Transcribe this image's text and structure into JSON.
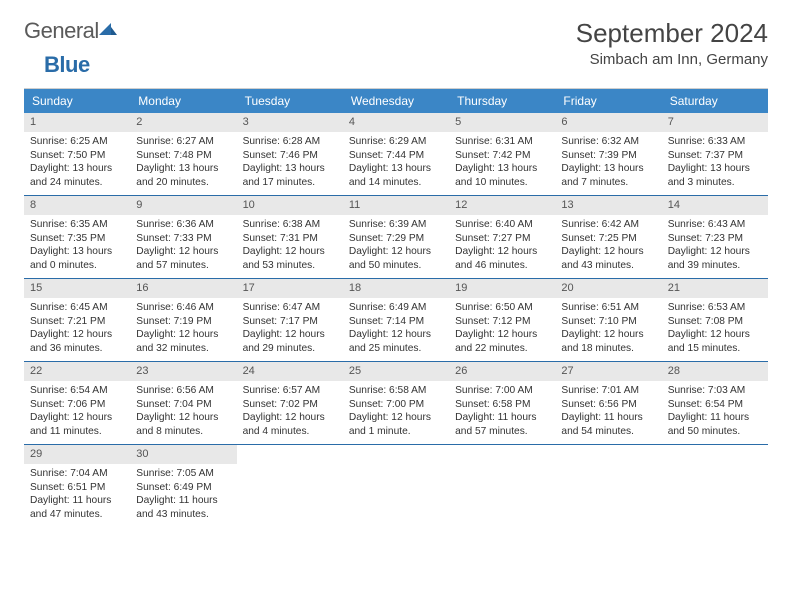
{
  "logo": {
    "word1": "General",
    "word2": "Blue"
  },
  "header": {
    "month_title": "September 2024",
    "location": "Simbach am Inn, Germany"
  },
  "colors": {
    "header_bar": "#3b86c6",
    "daynum_bg": "#e8e8e8",
    "week_divider": "#2a6ca8",
    "logo_blue": "#2a6ca8",
    "text": "#333333"
  },
  "weekdays": [
    "Sunday",
    "Monday",
    "Tuesday",
    "Wednesday",
    "Thursday",
    "Friday",
    "Saturday"
  ],
  "weeks": [
    [
      {
        "n": "1",
        "sunrise": "6:25 AM",
        "sunset": "7:50 PM",
        "dl_h": "13",
        "dl_m": "24"
      },
      {
        "n": "2",
        "sunrise": "6:27 AM",
        "sunset": "7:48 PM",
        "dl_h": "13",
        "dl_m": "20"
      },
      {
        "n": "3",
        "sunrise": "6:28 AM",
        "sunset": "7:46 PM",
        "dl_h": "13",
        "dl_m": "17"
      },
      {
        "n": "4",
        "sunrise": "6:29 AM",
        "sunset": "7:44 PM",
        "dl_h": "13",
        "dl_m": "14"
      },
      {
        "n": "5",
        "sunrise": "6:31 AM",
        "sunset": "7:42 PM",
        "dl_h": "13",
        "dl_m": "10"
      },
      {
        "n": "6",
        "sunrise": "6:32 AM",
        "sunset": "7:39 PM",
        "dl_h": "13",
        "dl_m": "7"
      },
      {
        "n": "7",
        "sunrise": "6:33 AM",
        "sunset": "7:37 PM",
        "dl_h": "13",
        "dl_m": "3"
      }
    ],
    [
      {
        "n": "8",
        "sunrise": "6:35 AM",
        "sunset": "7:35 PM",
        "dl_h": "13",
        "dl_m": "0"
      },
      {
        "n": "9",
        "sunrise": "6:36 AM",
        "sunset": "7:33 PM",
        "dl_h": "12",
        "dl_m": "57"
      },
      {
        "n": "10",
        "sunrise": "6:38 AM",
        "sunset": "7:31 PM",
        "dl_h": "12",
        "dl_m": "53"
      },
      {
        "n": "11",
        "sunrise": "6:39 AM",
        "sunset": "7:29 PM",
        "dl_h": "12",
        "dl_m": "50"
      },
      {
        "n": "12",
        "sunrise": "6:40 AM",
        "sunset": "7:27 PM",
        "dl_h": "12",
        "dl_m": "46"
      },
      {
        "n": "13",
        "sunrise": "6:42 AM",
        "sunset": "7:25 PM",
        "dl_h": "12",
        "dl_m": "43"
      },
      {
        "n": "14",
        "sunrise": "6:43 AM",
        "sunset": "7:23 PM",
        "dl_h": "12",
        "dl_m": "39"
      }
    ],
    [
      {
        "n": "15",
        "sunrise": "6:45 AM",
        "sunset": "7:21 PM",
        "dl_h": "12",
        "dl_m": "36"
      },
      {
        "n": "16",
        "sunrise": "6:46 AM",
        "sunset": "7:19 PM",
        "dl_h": "12",
        "dl_m": "32"
      },
      {
        "n": "17",
        "sunrise": "6:47 AM",
        "sunset": "7:17 PM",
        "dl_h": "12",
        "dl_m": "29"
      },
      {
        "n": "18",
        "sunrise": "6:49 AM",
        "sunset": "7:14 PM",
        "dl_h": "12",
        "dl_m": "25"
      },
      {
        "n": "19",
        "sunrise": "6:50 AM",
        "sunset": "7:12 PM",
        "dl_h": "12",
        "dl_m": "22"
      },
      {
        "n": "20",
        "sunrise": "6:51 AM",
        "sunset": "7:10 PM",
        "dl_h": "12",
        "dl_m": "18"
      },
      {
        "n": "21",
        "sunrise": "6:53 AM",
        "sunset": "7:08 PM",
        "dl_h": "12",
        "dl_m": "15"
      }
    ],
    [
      {
        "n": "22",
        "sunrise": "6:54 AM",
        "sunset": "7:06 PM",
        "dl_h": "12",
        "dl_m": "11"
      },
      {
        "n": "23",
        "sunrise": "6:56 AM",
        "sunset": "7:04 PM",
        "dl_h": "12",
        "dl_m": "8"
      },
      {
        "n": "24",
        "sunrise": "6:57 AM",
        "sunset": "7:02 PM",
        "dl_h": "12",
        "dl_m": "4"
      },
      {
        "n": "25",
        "sunrise": "6:58 AM",
        "sunset": "7:00 PM",
        "dl_h": "12",
        "dl_m": "1",
        "minute_word": "minute"
      },
      {
        "n": "26",
        "sunrise": "7:00 AM",
        "sunset": "6:58 PM",
        "dl_h": "11",
        "dl_m": "57"
      },
      {
        "n": "27",
        "sunrise": "7:01 AM",
        "sunset": "6:56 PM",
        "dl_h": "11",
        "dl_m": "54"
      },
      {
        "n": "28",
        "sunrise": "7:03 AM",
        "sunset": "6:54 PM",
        "dl_h": "11",
        "dl_m": "50"
      }
    ],
    [
      {
        "n": "29",
        "sunrise": "7:04 AM",
        "sunset": "6:51 PM",
        "dl_h": "11",
        "dl_m": "47"
      },
      {
        "n": "30",
        "sunrise": "7:05 AM",
        "sunset": "6:49 PM",
        "dl_h": "11",
        "dl_m": "43"
      },
      null,
      null,
      null,
      null,
      null
    ]
  ],
  "labels": {
    "sunrise": "Sunrise:",
    "sunset": "Sunset:",
    "daylight": "Daylight:",
    "hours": "hours",
    "and": "and",
    "minutes": "minutes."
  }
}
